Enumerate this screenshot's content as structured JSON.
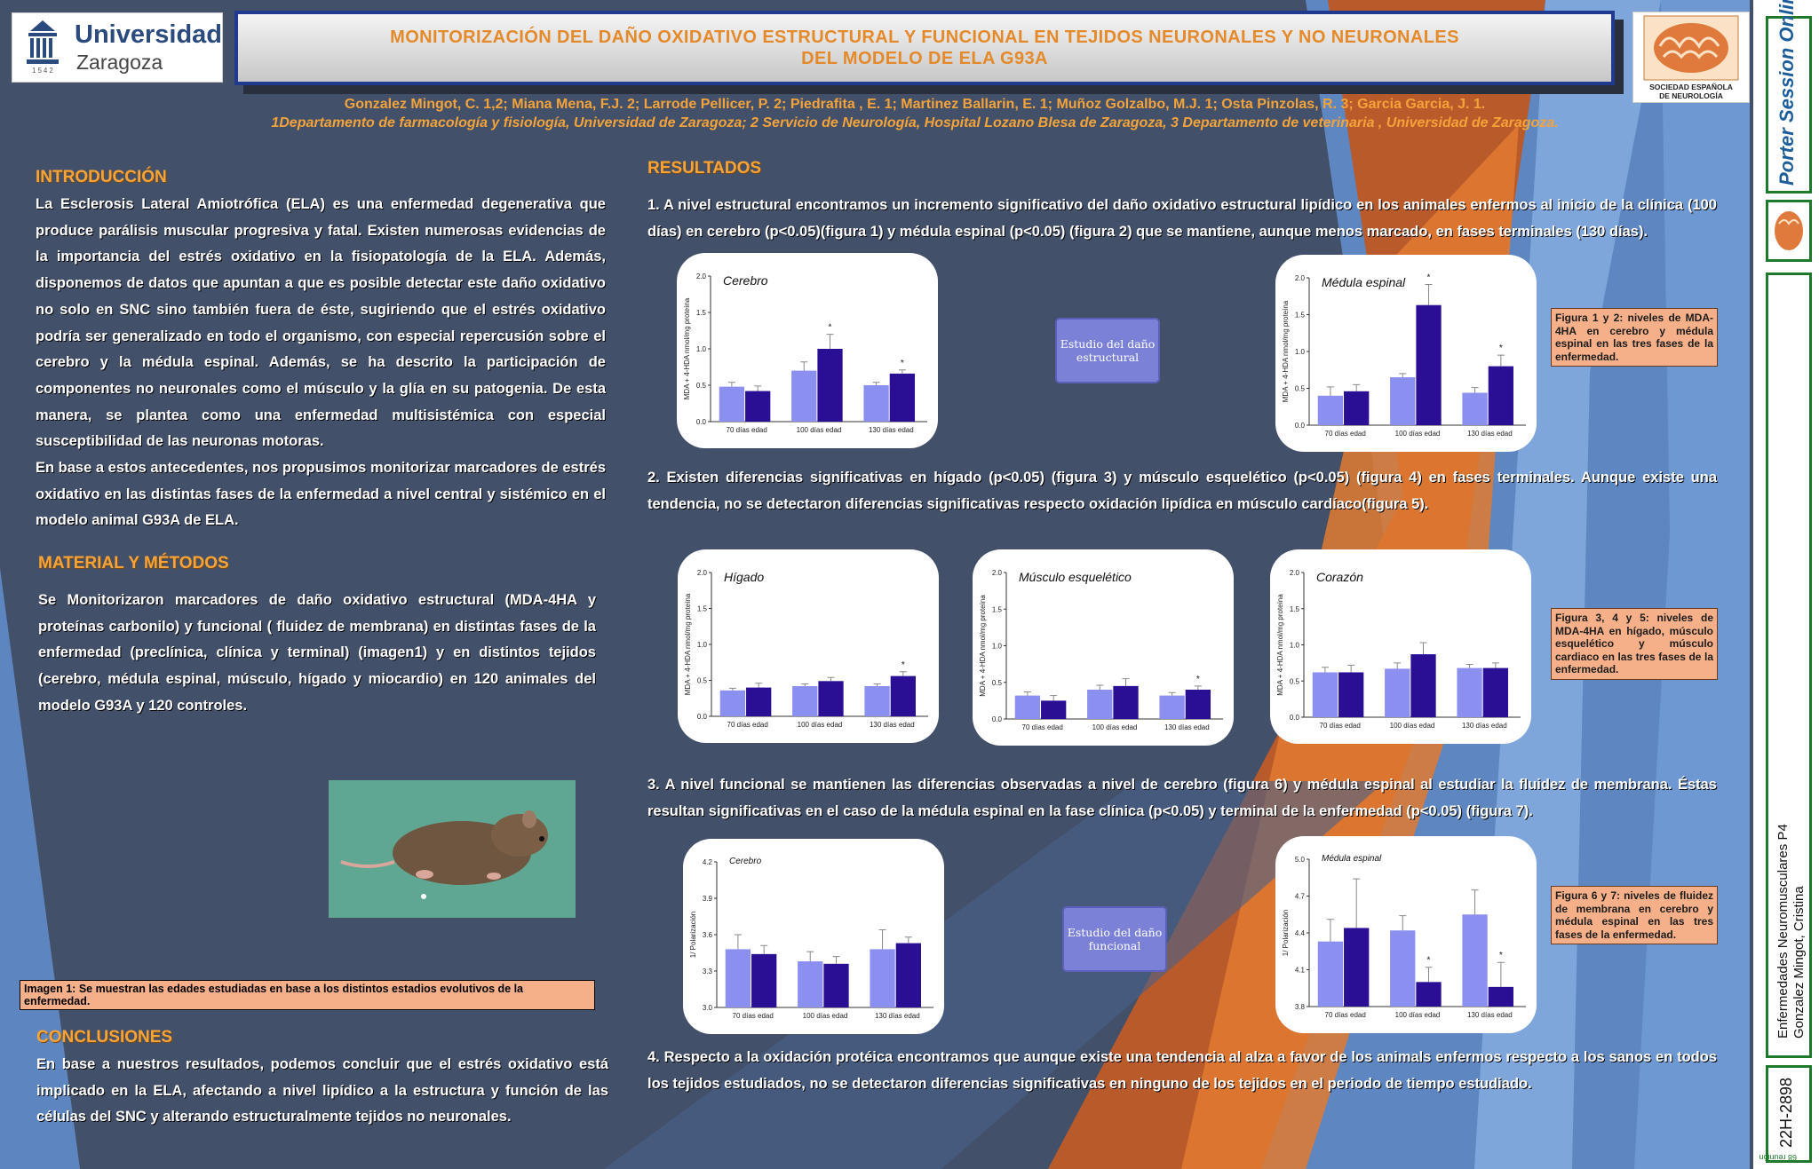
{
  "header": {
    "title_line1": "MONITORIZACIÓN DEL DAÑO OXIDATIVO ESTRUCTURAL Y FUNCIONAL EN TEJIDOS NEURONALES Y NO NEURONALES",
    "title_line2": "DEL MODELO DE ELA G93A",
    "authors": "Gonzalez Mingot, C. 1,2; Miana Mena, F.J. 2; Larrode Pellicer, P. 2; Piedrafita , E. 1; Martinez Ballarin, E. 1; Muñoz Golzalbo, M.J. 1; Osta Pinzolas, R. 3; Garcia Garcia, J. 1.",
    "affiliations": "1Departamento de farmacología y fisiología, Universidad de Zaragoza; 2 Servicio de Neurología, Hospital Lozano Blesa de Zaragoza, 3 Departamento de veterinaria , Universidad de Zaragoza.",
    "logo_left": {
      "name": "Universidad",
      "name2": "Zaragoza",
      "year": "1542"
    },
    "logo_right": {
      "text1": "SOCIEDAD ESPAÑOLA",
      "text2": "DE NEUROLOGÍA"
    }
  },
  "intro": {
    "heading": "INTRODUCCIÓN",
    "p1": "La Esclerosis Lateral Amiotrófica (ELA) es una enfermedad degenerativa que produce parálisis muscular progresiva y fatal. Existen numerosas evidencias de la importancia del estrés oxidativo en la fisiopatología de la ELA. Además, disponemos de datos que apuntan a que es posible detectar este daño oxidativo no solo en SNC sino también fuera de éste, sugiriendo que el estrés oxidativo podría ser generalizado en todo el organismo, con especial repercusión sobre el cerebro y la médula espinal. Además, se ha descrito la participación de componentes no neuronales como el músculo y la glía en su patogenia. De esta manera, se plantea como una enfermedad multisistémica con especial susceptibilidad de las neuronas motoras.",
    "p2": "En base a estos antecedentes, nos propusimos monitorizar marcadores de estrés oxidativo en las distintas fases de la enfermedad a nivel central y sistémico en el modelo animal G93A de ELA."
  },
  "methods": {
    "heading": "MATERIAL Y MÉTODOS",
    "p1": "Se Monitorizaron marcadores de daño oxidativo estructural (MDA-4HA y proteínas carbonilo) y funcional ( fluidez de membrana) en distintas fases de la enfermedad (preclínica, clínica y terminal) (imagen1) y en distintos tejidos (cerebro, médula espinal, músculo, hígado y miocardio) en 120 animales del modelo G93A y 120 controles.",
    "image_caption": "Imagen 1: Se muestran las edades estudiadas en base a los distintos estadios evolutivos de la enfermedad."
  },
  "conclusions": {
    "heading": "CONCLUSIONES",
    "p1": "En base a nuestros resultados, podemos concluir que el estrés oxidativo está implicado en la ELA, afectando a nivel lipídico a la estructura y función de las células del SNC y alterando estructuralmente tejidos no neuronales."
  },
  "results": {
    "heading": "RESULTADOS",
    "p1": "1. A nivel estructural encontramos un incremento significativo del daño oxidativo estructural lipídico en los animales enfermos al inicio de la clínica (100 días) en cerebro (p<0.05)(figura 1)  y médula espinal (p<0.05) (figura 2)  que se mantiene, aunque menos marcado, en fases terminales (130 días).",
    "p2": "2. Existen diferencias significativas en hígado (p<0.05) (figura 3)  y músculo esquelético (p<0.05) (figura 4) en fases terminales. Aunque existe una tendencia, no se detectaron diferencias significativas respecto oxidación lipídica en músculo cardíaco(figura 5).",
    "p3": "3. A nivel funcional se mantienen las diferencias observadas a nivel de cerebro (figura 6)  y médula espinal al estudiar la fluidez de membrana. Éstas resultan significativas en el caso de la médula espinal en la fase clínica (p<0.05) y terminal de la enfermedad (p<0.05) (figura 7).",
    "p4": "4. Respecto a la oxidación protéica encontramos que aunque existe una  tendencia al alza a favor de los animals enfermos respecto a los sanos en todos los tejidos estudiados, no se detectaron diferencias significativas en ninguno de los tejidos en el periodo de tiempo estudiado.",
    "btn_structural": "Estudio del daño estructural",
    "btn_functional": "Estudio del daño funcional",
    "note_12": "Figura 1 y 2: niveles de MDA-4HA en cerebro y médula espinal en las tres fases de la enfermedad.",
    "note_345": "Figura 3, 4 y 5: niveles de MDA-4HA en hígado, músculo esquelético y músculo cardiaco en las tres fases de la enfermedad.",
    "note_67": "Figura 6 y 7: niveles de fluidez de membrana en cerebro y médula espinal en las tres fases de la enfermedad."
  },
  "sidebar": {
    "brand": "Porter Session Online",
    "session": "Enfermedades Neuromusculares P4",
    "author": "Gonzalez Mingot, Cristina",
    "code": "22H-2898",
    "small": "68 reunión"
  },
  "colors": {
    "control": "#8b8ff0",
    "ela": "#2a0f94",
    "accent": "#f6a43a",
    "bg": "#435069"
  },
  "chart_data": [
    {
      "type": "bar",
      "title": "Cerebro",
      "ylabel": "MDA + 4-HDA nmol/mg proteína",
      "categories": [
        "70 días edad",
        "100 días edad",
        "130 días edad"
      ],
      "ylim": [
        0,
        2.0
      ],
      "yticks": [
        0.0,
        0.5,
        1.0,
        1.5,
        2.0
      ],
      "series": [
        {
          "values": [
            0.48,
            0.7,
            0.5
          ],
          "errors": [
            0.06,
            0.12,
            0.04
          ]
        },
        {
          "values": [
            0.42,
            1.0,
            0.66
          ],
          "errors": [
            0.07,
            0.2,
            0.05
          ]
        }
      ],
      "significant": [
        [
          1,
          1
        ],
        [
          2,
          1
        ]
      ]
    },
    {
      "type": "bar",
      "title": "Médula espinal",
      "ylabel": "MDA + 4-HDA nmol/mg proteína",
      "categories": [
        "70 días edad",
        "100 días edad",
        "130 días edad"
      ],
      "ylim": [
        0,
        2.0
      ],
      "yticks": [
        0.0,
        0.5,
        1.0,
        1.5,
        2.0
      ],
      "series": [
        {
          "values": [
            0.4,
            0.65,
            0.44
          ],
          "errors": [
            0.12,
            0.05,
            0.07
          ]
        },
        {
          "values": [
            0.46,
            1.63,
            0.8
          ],
          "errors": [
            0.09,
            0.28,
            0.15
          ]
        }
      ],
      "significant": [
        [
          1,
          1
        ],
        [
          2,
          1
        ]
      ]
    },
    {
      "type": "bar",
      "title": "Hígado",
      "ylabel": "MDA + 4-HDA nmol/mg proteína",
      "categories": [
        "70 días edad",
        "100 días edad",
        "130 días edad"
      ],
      "ylim": [
        0,
        2.0
      ],
      "yticks": [
        0.0,
        0.5,
        1.0,
        1.5,
        2.0
      ],
      "series": [
        {
          "values": [
            0.36,
            0.42,
            0.42
          ],
          "errors": [
            0.03,
            0.03,
            0.03
          ]
        },
        {
          "values": [
            0.4,
            0.49,
            0.56
          ],
          "errors": [
            0.06,
            0.05,
            0.06
          ]
        }
      ],
      "significant": [
        [
          2,
          1
        ]
      ]
    },
    {
      "type": "bar",
      "title": "Músculo esquelético",
      "ylabel": "MDA + 4-HDA nmol/mg proteína",
      "categories": [
        "70 días edad",
        "100 días edad",
        "130 días edad"
      ],
      "ylim": [
        0,
        2.0
      ],
      "yticks": [
        0.0,
        0.5,
        1.0,
        1.5,
        2.0
      ],
      "series": [
        {
          "values": [
            0.32,
            0.4,
            0.32
          ],
          "errors": [
            0.05,
            0.06,
            0.04
          ]
        },
        {
          "values": [
            0.25,
            0.45,
            0.4
          ],
          "errors": [
            0.07,
            0.1,
            0.05
          ]
        }
      ],
      "significant": [
        [
          2,
          1
        ]
      ]
    },
    {
      "type": "bar",
      "title": "Corazón",
      "ylabel": "MDA + 4-HDA nmol/mg proteína",
      "categories": [
        "70 días edad",
        "100 días edad",
        "130 días edad"
      ],
      "ylim": [
        0,
        2.0
      ],
      "yticks": [
        0.0,
        0.5,
        1.0,
        1.5,
        2.0
      ],
      "series": [
        {
          "values": [
            0.62,
            0.67,
            0.68
          ],
          "errors": [
            0.07,
            0.08,
            0.05
          ]
        },
        {
          "values": [
            0.62,
            0.87,
            0.68
          ],
          "errors": [
            0.1,
            0.16,
            0.07
          ]
        }
      ],
      "significant": []
    },
    {
      "type": "bar",
      "title": "Cerebro",
      "ylabel": "1/ Polarización",
      "categories": [
        "70 días edad",
        "100 días edad",
        "130 días edad"
      ],
      "ylim": [
        3.0,
        4.2
      ],
      "yticks": [
        3.0,
        3.3,
        3.6,
        3.9,
        4.2
      ],
      "series": [
        {
          "values": [
            3.48,
            3.38,
            3.48
          ],
          "errors": [
            0.12,
            0.08,
            0.16
          ]
        },
        {
          "values": [
            3.44,
            3.36,
            3.53
          ],
          "errors": [
            0.07,
            0.06,
            0.05
          ]
        }
      ],
      "significant": []
    },
    {
      "type": "bar",
      "title": "Médula espinal",
      "ylabel": "1/ Polarización",
      "categories": [
        "70 días edad",
        "100 días edad",
        "130 días edad"
      ],
      "ylim": [
        3.8,
        5.0
      ],
      "yticks": [
        3.8,
        4.1,
        4.4,
        4.7,
        5.0
      ],
      "series": [
        {
          "values": [
            4.33,
            4.42,
            4.55
          ],
          "errors": [
            0.18,
            0.12,
            0.2
          ]
        },
        {
          "values": [
            4.44,
            4.0,
            3.96
          ],
          "errors": [
            0.4,
            0.12,
            0.2
          ]
        }
      ],
      "significant": [
        [
          1,
          1
        ],
        [
          2,
          1
        ]
      ]
    }
  ]
}
